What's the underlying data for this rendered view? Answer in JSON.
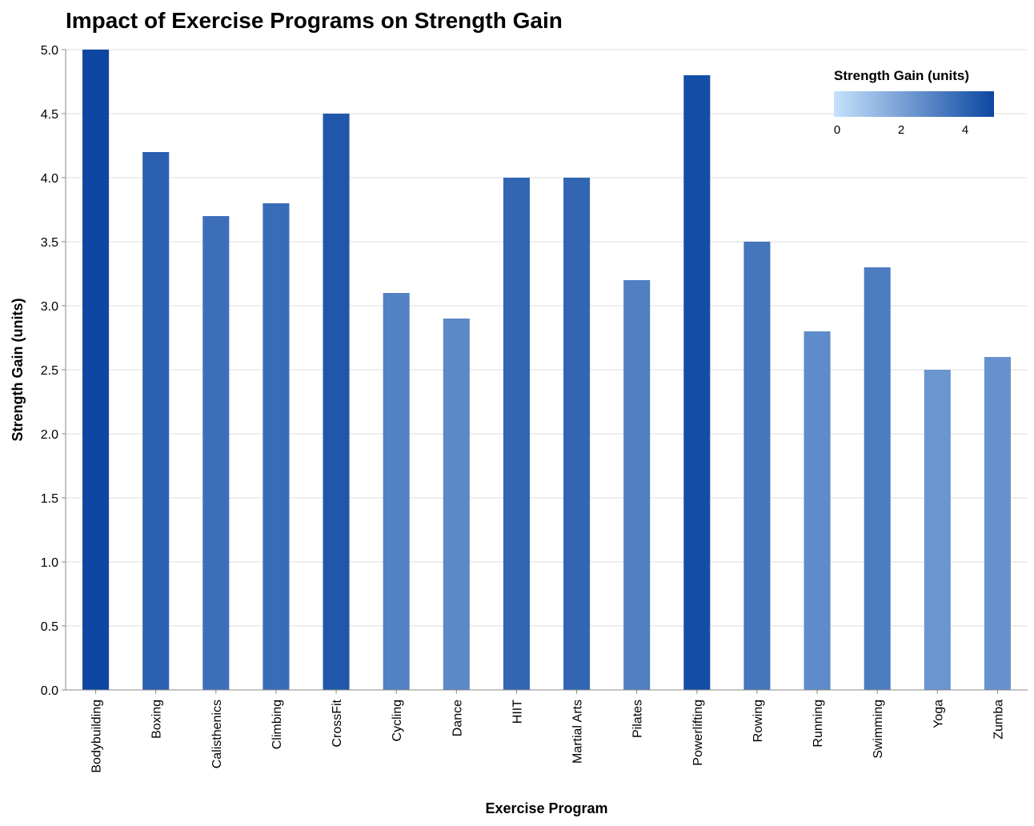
{
  "chart_data": {
    "type": "bar",
    "title": "Impact of Exercise Programs on Strength Gain",
    "xlabel": "Exercise Program",
    "ylabel": "Strength Gain (units)",
    "ylim": [
      0,
      5
    ],
    "y_ticks": [
      "0.0",
      "0.5",
      "1.0",
      "1.5",
      "2.0",
      "2.5",
      "3.0",
      "3.5",
      "4.0",
      "4.5",
      "5.0"
    ],
    "grid": true,
    "categories": [
      "Bodybuilding",
      "Boxing",
      "Calisthenics",
      "Climbing",
      "CrossFit",
      "Cycling",
      "Dance",
      "HIIT",
      "Martial Arts",
      "Pilates",
      "Powerlifting",
      "Rowing",
      "Running",
      "Swimming",
      "Yoga",
      "Zumba"
    ],
    "values": [
      5.0,
      4.2,
      3.7,
      3.8,
      4.5,
      3.1,
      2.9,
      4.0,
      4.0,
      3.2,
      4.8,
      3.5,
      2.8,
      3.3,
      2.5,
      2.6
    ],
    "color_scale": {
      "domain": [
        0,
        5
      ],
      "range": [
        "#c6e2fc",
        "#0d47a1"
      ]
    },
    "legend": {
      "title": "Strength Gain (units)",
      "ticks": [
        "0",
        "2",
        "4"
      ],
      "placement": "top-right"
    }
  }
}
